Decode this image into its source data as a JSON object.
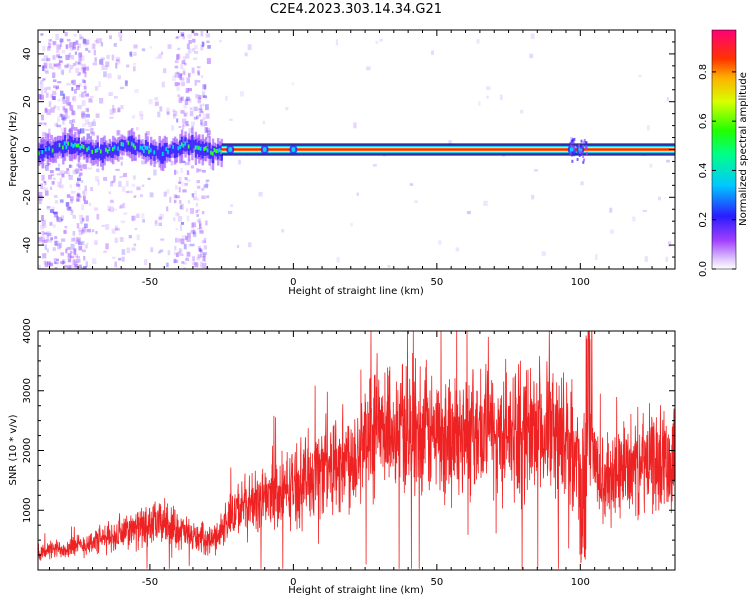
{
  "title": "C2E4.2023.303.14.34.G21",
  "chart_data": [
    {
      "type": "heatmap",
      "xlabel": "Height of straight line (km)",
      "ylabel": "Frequency (Hz)",
      "xlim": [
        -89,
        133
      ],
      "ylim": [
        -50,
        50
      ],
      "xticks": [
        -50,
        0,
        50,
        100
      ],
      "yticks": [
        -40,
        -20,
        0,
        20,
        40
      ],
      "colorbar": {
        "label": "Normalized spectral amplitude",
        "range": [
          0,
          0.97
        ],
        "ticks": [
          "0.0",
          "0.2",
          "0.4",
          "0.6",
          "0.8"
        ]
      },
      "dominant_frequency_hz": 0,
      "band_halfwidth_hz": 1.5,
      "colors": [
        "#9b4dff",
        "#3322ff",
        "#00d5ff",
        "#33ff33",
        "#ffee00",
        "#ff2222"
      ]
    },
    {
      "type": "line",
      "xlabel": "Height of straight line (km)",
      "ylabel": "SNR (10 * v/v)",
      "xlim": [
        -89,
        133
      ],
      "ylim": [
        0,
        4000
      ],
      "xticks": [
        -50,
        0,
        50,
        100
      ],
      "yticks": [
        1000,
        2000,
        3000,
        4000
      ],
      "line_color": "#ee2222",
      "trend": {
        "x": [
          -89,
          -75,
          -60,
          -50,
          -45,
          -35,
          -28,
          -20,
          -10,
          0,
          10,
          20,
          30,
          40,
          50,
          60,
          70,
          80,
          90,
          97,
          100,
          103,
          107,
          115,
          125,
          133
        ],
        "y": [
          300,
          400,
          600,
          750,
          800,
          550,
          500,
          1000,
          1200,
          1400,
          1700,
          1900,
          2300,
          2400,
          2250,
          2300,
          2300,
          2350,
          2350,
          2100,
          1600,
          2100,
          1500,
          1700,
          1800,
          1900
        ]
      }
    }
  ]
}
